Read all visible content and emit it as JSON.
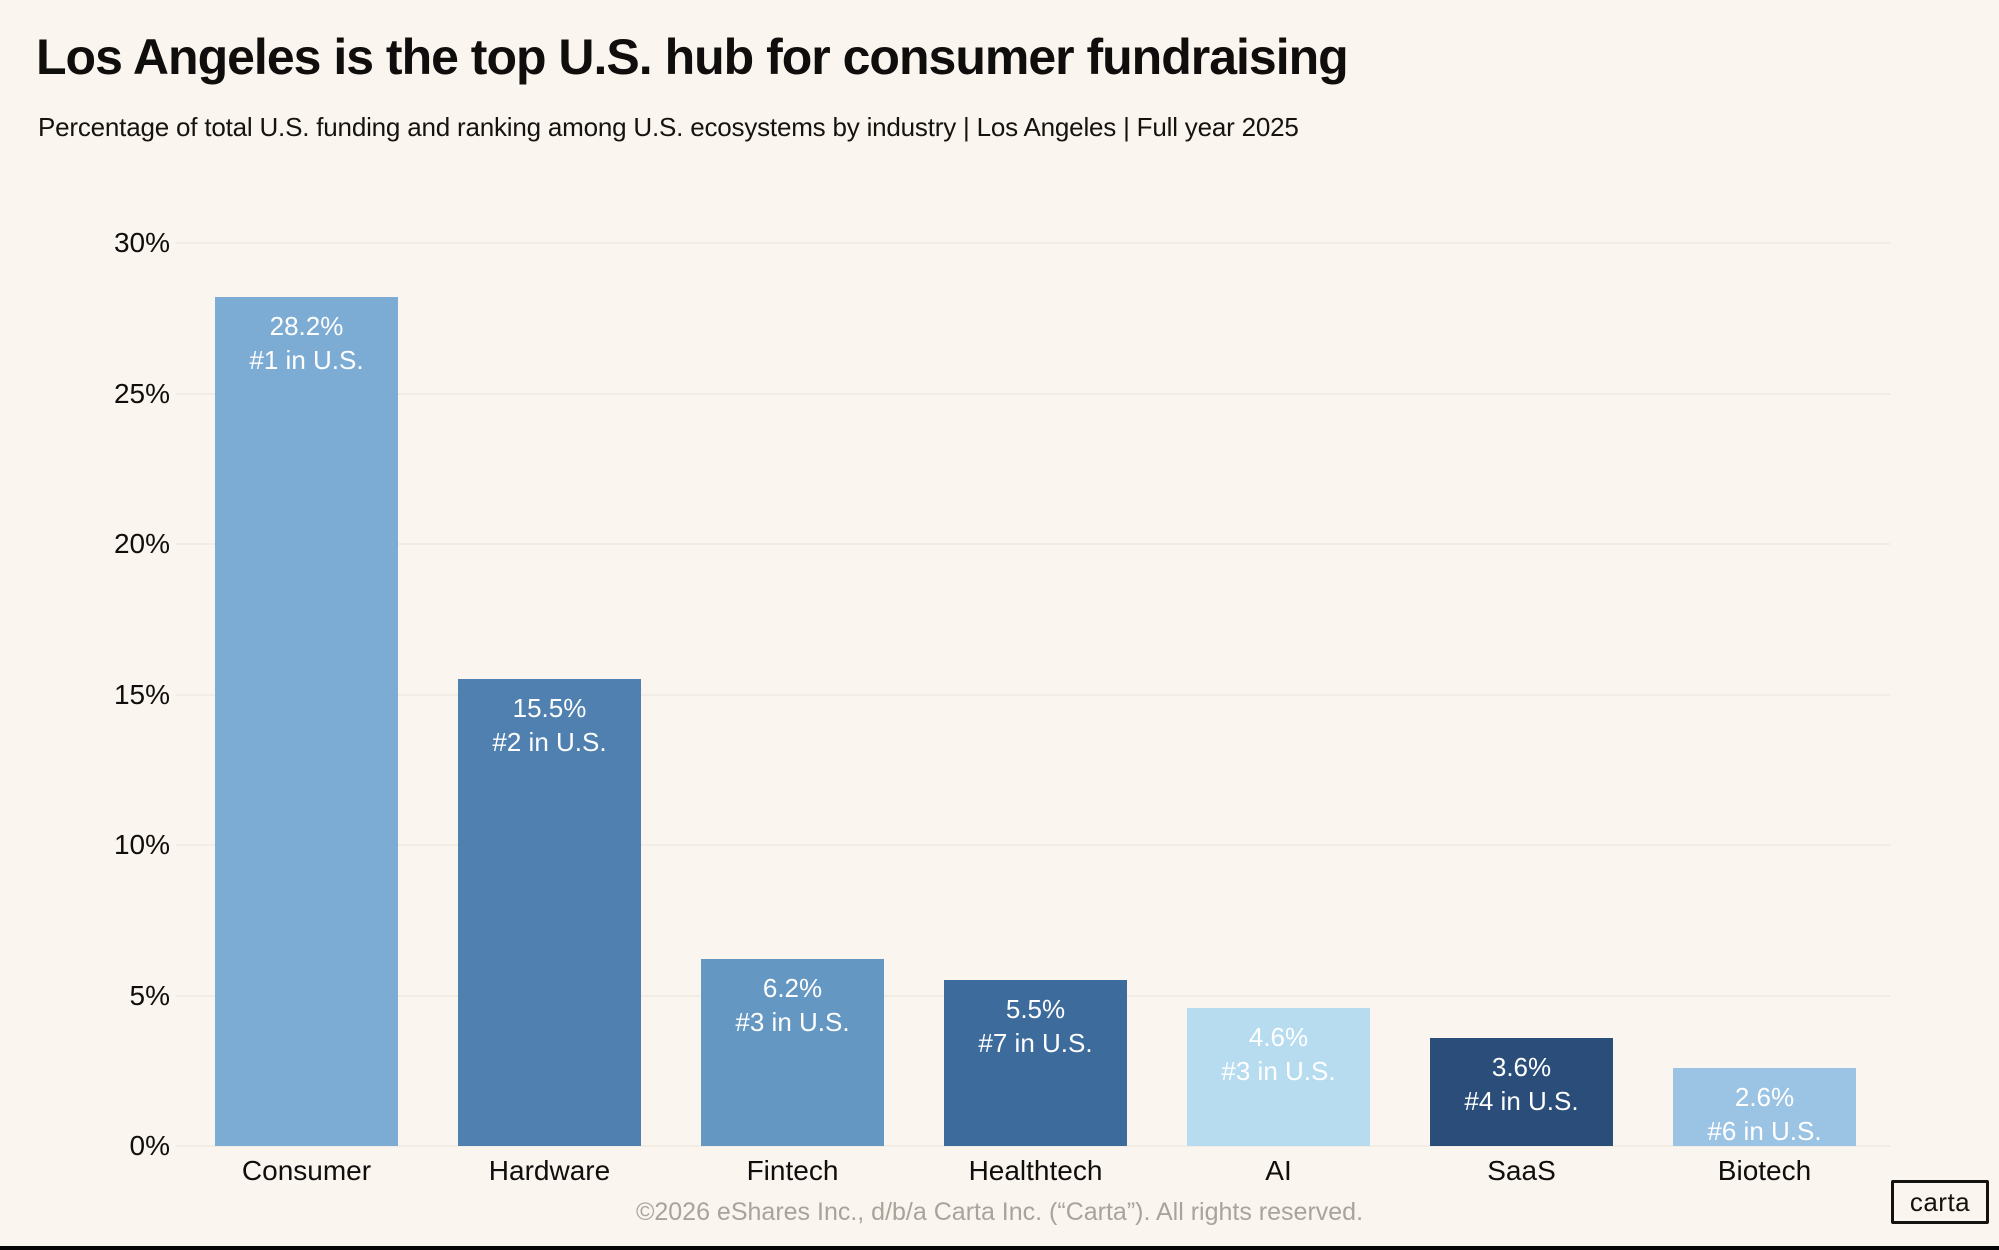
{
  "page": {
    "title": "Los Angeles is the top U.S. hub for consumer fundraising",
    "subtitle": "Percentage of total U.S. funding and ranking among U.S. ecosystems by industry | Los Angeles | Full year 2025",
    "footer": "©2026 eShares Inc., d/b/a Carta Inc. (“Carta”). All rights reserved.",
    "logo_text": "carta"
  },
  "colors": {
    "background": "#FAF5EE",
    "gridline": "#F1EDE5",
    "text": "#0F0E0C",
    "bar_label_text": "#FFFFFF",
    "footer_text": "#A8A39B"
  },
  "chart_data": {
    "type": "bar",
    "title": "Los Angeles is the top U.S. hub for consumer fundraising",
    "subtitle": "Percentage of total U.S. funding and ranking among U.S. ecosystems by industry | Los Angeles | Full year 2025",
    "categories": [
      "Consumer",
      "Hardware",
      "Fintech",
      "Healthtech",
      "AI",
      "SaaS",
      "Biotech"
    ],
    "values": [
      28.2,
      15.5,
      6.2,
      5.5,
      4.6,
      3.6,
      2.6
    ],
    "value_labels": [
      "28.2%",
      "15.5%",
      "6.2%",
      "5.5%",
      "4.6%",
      "3.6%",
      "2.6%"
    ],
    "rank_labels": [
      "#1 in U.S.",
      "#2 in U.S.",
      "#3 in U.S.",
      "#7 in U.S.",
      "#3 in U.S.",
      "#4 in U.S.",
      "#6 in U.S."
    ],
    "bar_colors": [
      "#7CACD3",
      "#4F80B0",
      "#6497C2",
      "#3D6B9C",
      "#B7DCF0",
      "#2A4E79",
      "#9BC3E4"
    ],
    "xlabel": "",
    "ylabel": "",
    "ylim": [
      0,
      30
    ],
    "ytick_values": [
      0,
      5,
      10,
      15,
      20,
      25,
      30
    ],
    "ytick_labels": [
      "0%",
      "5%",
      "10%",
      "15%",
      "20%",
      "25%",
      "30%"
    ],
    "grid": "horizontal",
    "legend": "none"
  }
}
